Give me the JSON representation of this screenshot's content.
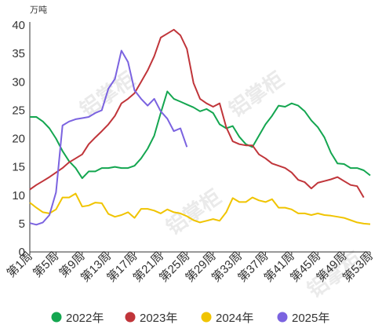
{
  "chart_data": {
    "type": "line",
    "unit_label": "万吨",
    "ylim": [
      0,
      40
    ],
    "yticks": [
      0,
      5,
      10,
      15,
      20,
      25,
      30,
      35,
      40
    ],
    "x_count": 53,
    "xtick_weeks": [
      1,
      5,
      9,
      13,
      17,
      21,
      25,
      29,
      33,
      37,
      41,
      45,
      49,
      53
    ],
    "xtick_labels": [
      "第1周",
      "第5周",
      "第9周",
      "第13周",
      "第17周",
      "第21周",
      "第25周",
      "第29周",
      "第33周",
      "第37周",
      "第41周",
      "第45周",
      "第49周",
      "第53周"
    ],
    "grid": false,
    "legend_position": "bottom",
    "series": [
      {
        "name": "2022年",
        "color": "#14a650",
        "values": [
          23.8,
          23.8,
          23.0,
          21.8,
          20.0,
          17.8,
          16.0,
          14.8,
          13.0,
          14.2,
          14.2,
          14.8,
          14.8,
          15.0,
          14.8,
          14.8,
          15.2,
          16.5,
          18.2,
          20.5,
          24.5,
          28.3,
          27.0,
          26.5,
          26.0,
          25.5,
          24.8,
          25.2,
          24.5,
          22.5,
          21.8,
          22.2,
          20.3,
          19.0,
          18.5,
          20.5,
          22.5,
          24.0,
          25.8,
          25.6,
          26.2,
          25.8,
          24.8,
          23.2,
          22.0,
          20.2,
          17.5,
          15.6,
          15.5,
          14.8,
          14.8,
          14.4,
          13.5
        ]
      },
      {
        "name": "2023年",
        "color": "#c0353a",
        "values": [
          11.0,
          11.8,
          12.5,
          13.2,
          14.0,
          14.8,
          15.8,
          16.5,
          17.2,
          19.0,
          20.2,
          21.3,
          22.5,
          24.0,
          26.2,
          27.0,
          28.0,
          30.0,
          32.0,
          34.5,
          37.8,
          38.5,
          39.2,
          38.2,
          35.8,
          29.8,
          27.0,
          26.2,
          25.6,
          26.2,
          22.0,
          19.5,
          19.0,
          18.8,
          18.8,
          17.2,
          16.5,
          15.6,
          15.2,
          14.8,
          14.0,
          12.7,
          12.3,
          11.2,
          12.2,
          12.5,
          12.8,
          13.2,
          12.5,
          11.8,
          11.6,
          9.6
        ]
      },
      {
        "name": "2024年",
        "color": "#f0c400",
        "values": [
          8.7,
          7.8,
          7.0,
          6.8,
          7.5,
          9.6,
          9.6,
          10.3,
          8.0,
          8.2,
          8.7,
          8.6,
          6.7,
          6.2,
          6.5,
          7.0,
          6.0,
          7.6,
          7.6,
          7.3,
          6.8,
          7.5,
          7.0,
          6.8,
          6.3,
          5.6,
          5.2,
          5.5,
          5.8,
          5.5,
          7.0,
          9.5,
          8.8,
          8.8,
          9.6,
          9.1,
          8.8,
          9.3,
          7.8,
          7.8,
          7.5,
          6.8,
          6.8,
          6.5,
          6.8,
          6.5,
          6.4,
          6.2,
          6.0,
          5.6,
          5.2,
          5.0,
          4.9
        ]
      },
      {
        "name": "2025年",
        "color": "#7b63e0",
        "values": [
          5.1,
          4.8,
          5.2,
          6.5,
          10.5,
          22.3,
          23.0,
          23.4,
          23.6,
          23.8,
          24.5,
          25.0,
          28.8,
          30.5,
          35.5,
          33.5,
          28.5,
          27.0,
          25.8,
          27.0,
          24.8,
          23.5,
          21.3,
          21.8,
          18.5
        ]
      }
    ]
  }
}
